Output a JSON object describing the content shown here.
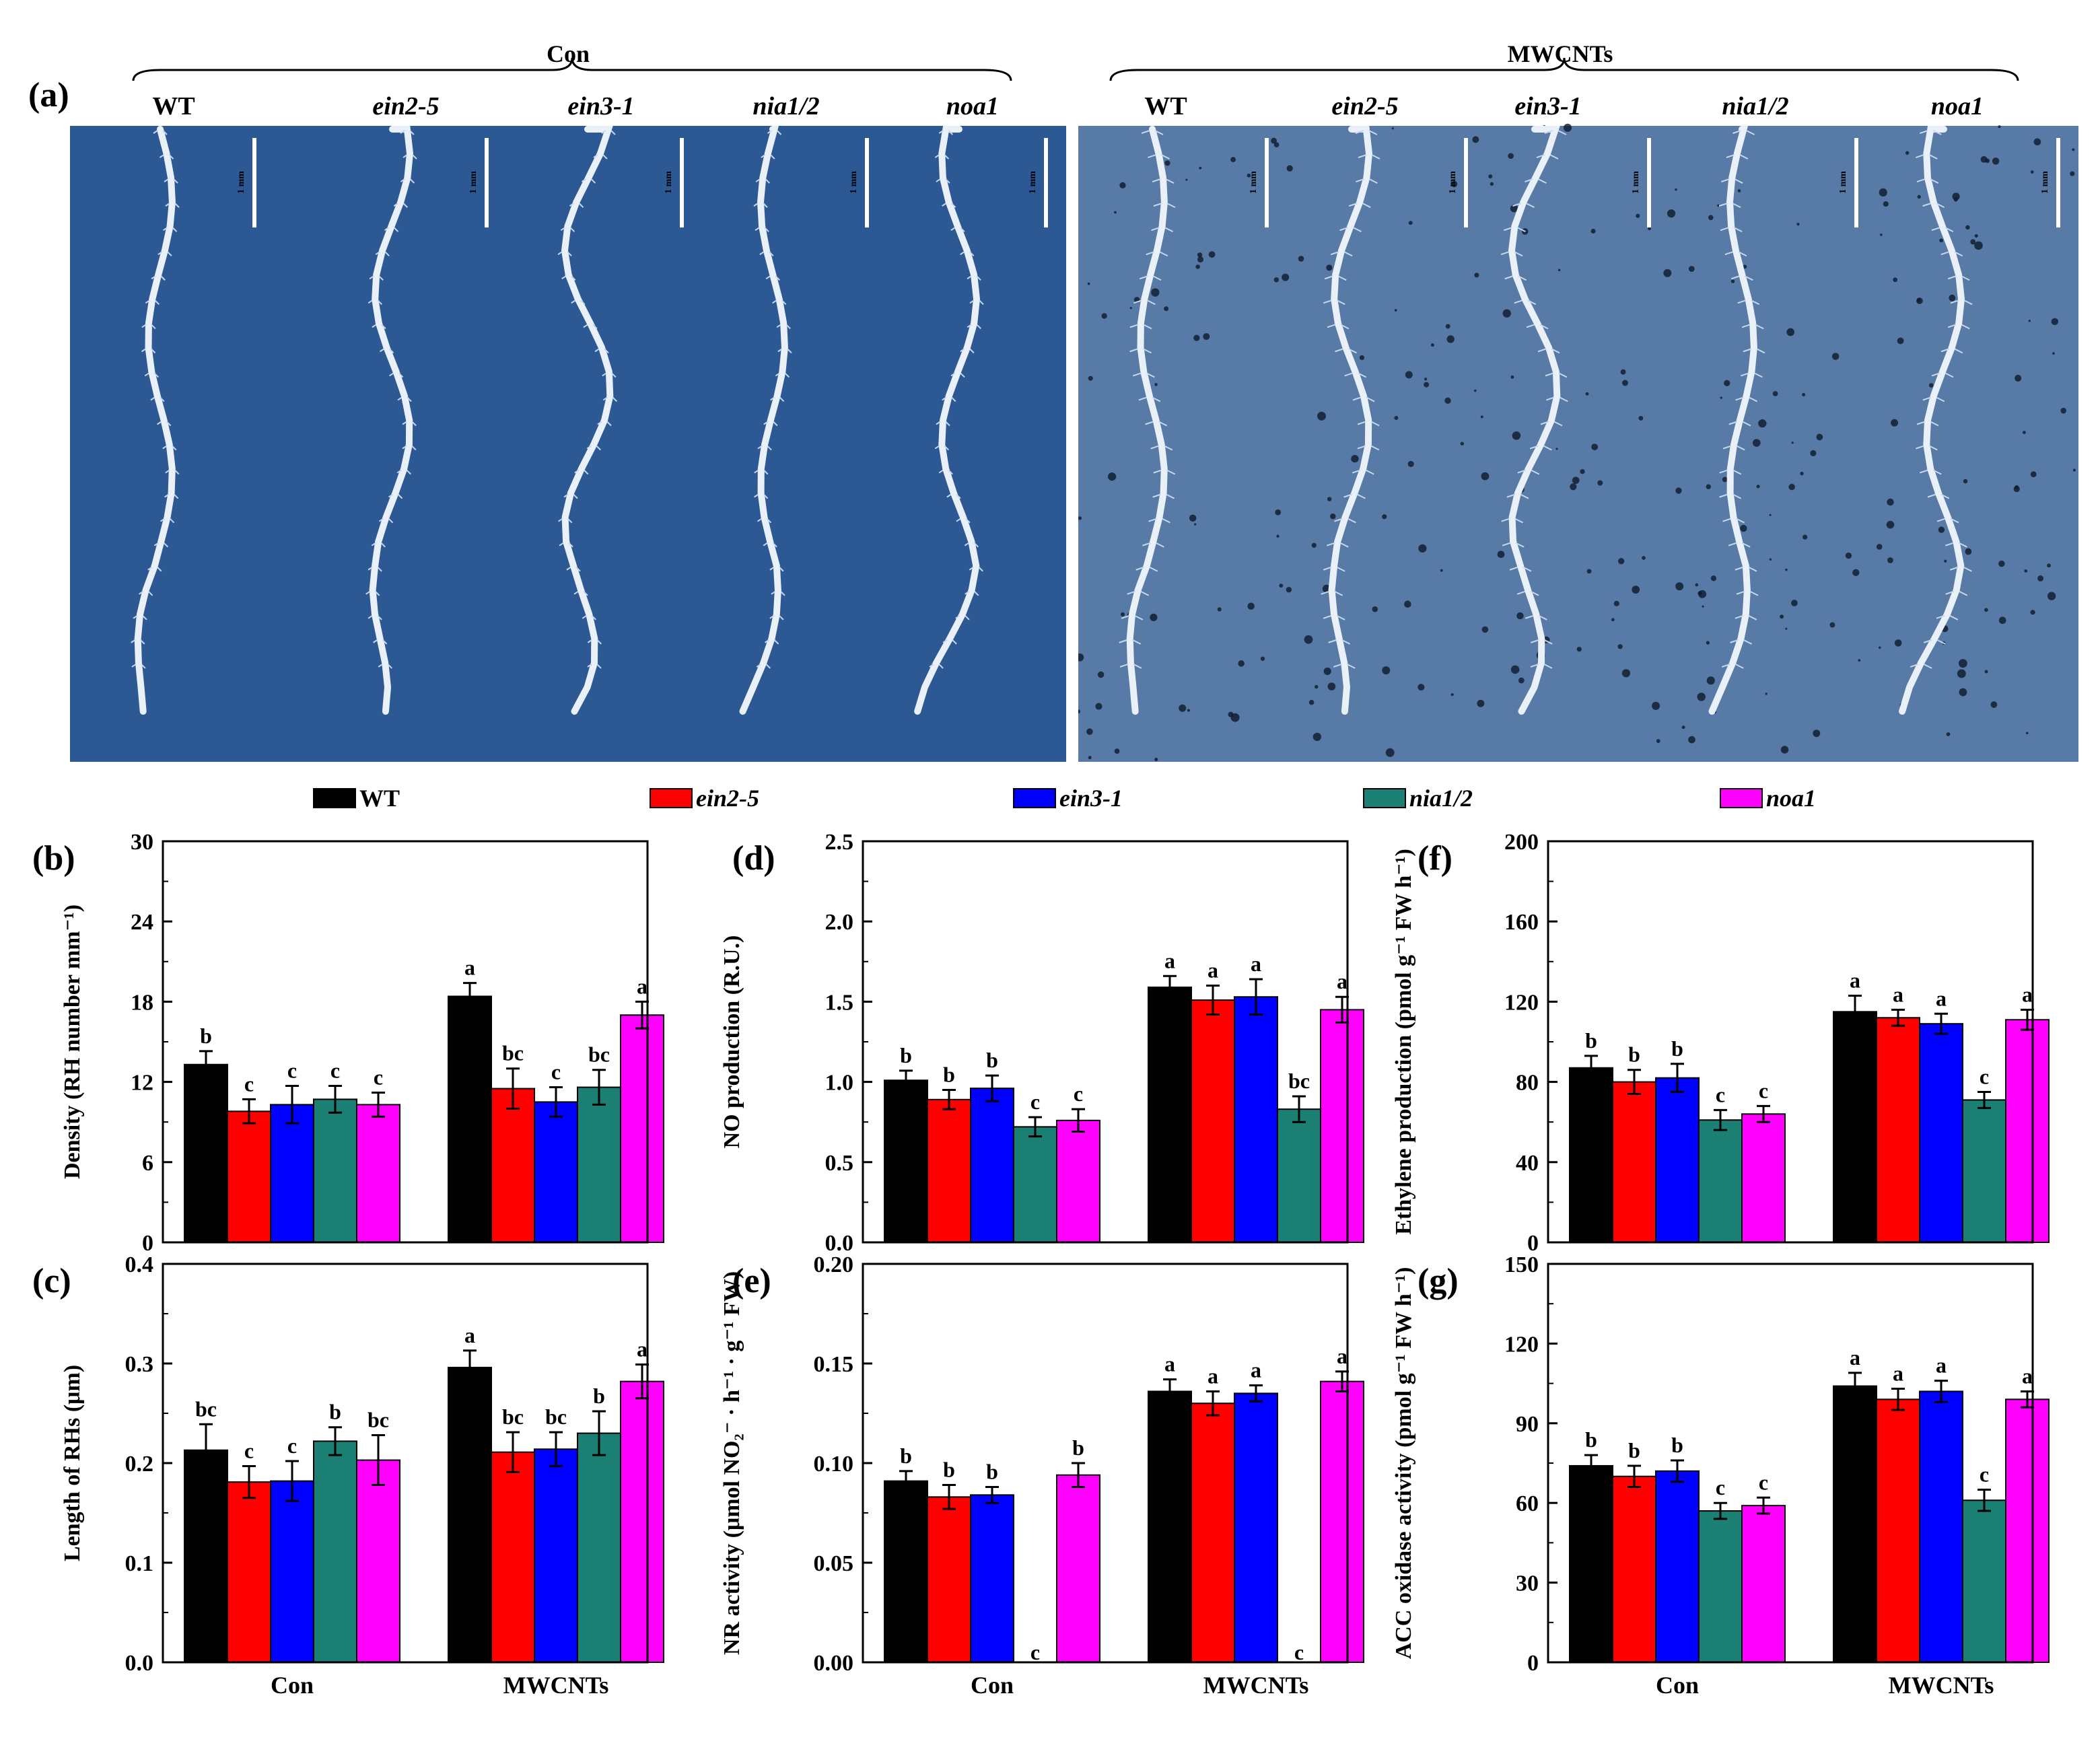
{
  "panel_a": {
    "label": "(a)",
    "groups": [
      {
        "name": "Con",
        "genotypes": [
          "WT",
          "ein2-5",
          "ein3-1",
          "nia1/2",
          "noa1"
        ],
        "scale_labels": [
          "1 mm",
          "1 mm",
          "1 mm",
          "1 mm",
          "1 mm"
        ]
      },
      {
        "name": "MWCNTs",
        "genotypes": [
          "WT",
          "ein2-5",
          "ein3-1",
          "nia1/2",
          "noa1"
        ],
        "scale_labels": [
          "1 mm",
          "1 mm",
          "1 mm",
          "1 mm",
          "1 mm"
        ]
      }
    ]
  },
  "legend": [
    {
      "name": "WT",
      "color": "#000000",
      "italic": false
    },
    {
      "name": "ein2-5",
      "color": "#ff0000",
      "italic": true
    },
    {
      "name": "ein3-1",
      "color": "#0000ff",
      "italic": true
    },
    {
      "name": "nia1/2",
      "color": "#1c7f73",
      "italic": true
    },
    {
      "name": "noa1",
      "color": "#ff00ff",
      "italic": true
    }
  ],
  "chart_data": [
    {
      "type": "bar",
      "panel": "(b)",
      "categories": [
        "Con",
        "MWCNTs"
      ],
      "show_xticklabels": false,
      "ylabel": "Density (RH number mm⁻¹)",
      "ylim": [
        0,
        30
      ],
      "yticks": [
        0,
        6,
        12,
        18,
        24,
        30
      ],
      "ytick_labels": [
        "0",
        "6",
        "12",
        "18",
        "24",
        "30"
      ],
      "series": [
        {
          "name": "WT",
          "values": [
            13.3,
            18.4
          ],
          "errors": [
            1.0,
            1.0
          ],
          "letters": [
            "b",
            "a"
          ]
        },
        {
          "name": "ein2-5",
          "values": [
            9.8,
            11.5
          ],
          "errors": [
            0.9,
            1.5
          ],
          "letters": [
            "c",
            "bc"
          ]
        },
        {
          "name": "ein3-1",
          "values": [
            10.3,
            10.5
          ],
          "errors": [
            1.4,
            1.1
          ],
          "letters": [
            "c",
            "c"
          ]
        },
        {
          "name": "nia1/2",
          "values": [
            10.7,
            11.6
          ],
          "errors": [
            1.0,
            1.3
          ],
          "letters": [
            "c",
            "bc"
          ]
        },
        {
          "name": "noa1",
          "values": [
            10.3,
            17.0
          ],
          "errors": [
            0.9,
            1.0
          ],
          "letters": [
            "c",
            "a"
          ]
        }
      ]
    },
    {
      "type": "bar",
      "panel": "(c)",
      "categories": [
        "Con",
        "MWCNTs"
      ],
      "show_xticklabels": true,
      "ylabel": "Length of RHs (μm)",
      "ylim": [
        0,
        0.4
      ],
      "yticks": [
        0,
        0.1,
        0.2,
        0.3,
        0.4
      ],
      "ytick_labels": [
        "0.0",
        "0.1",
        "0.2",
        "0.3",
        "0.4"
      ],
      "series": [
        {
          "name": "WT",
          "values": [
            0.213,
            0.296
          ],
          "errors": [
            0.026,
            0.017
          ],
          "letters": [
            "bc",
            "a"
          ]
        },
        {
          "name": "ein2-5",
          "values": [
            0.181,
            0.211
          ],
          "errors": [
            0.016,
            0.02
          ],
          "letters": [
            "c",
            "bc"
          ]
        },
        {
          "name": "ein3-1",
          "values": [
            0.182,
            0.214
          ],
          "errors": [
            0.02,
            0.017
          ],
          "letters": [
            "c",
            "bc"
          ]
        },
        {
          "name": "nia1/2",
          "values": [
            0.222,
            0.23
          ],
          "errors": [
            0.014,
            0.022
          ],
          "letters": [
            "b",
            "b"
          ]
        },
        {
          "name": "noa1",
          "values": [
            0.203,
            0.282
          ],
          "errors": [
            0.025,
            0.017
          ],
          "letters": [
            "bc",
            "a"
          ]
        }
      ]
    },
    {
      "type": "bar",
      "panel": "(d)",
      "categories": [
        "Con",
        "MWCNTs"
      ],
      "show_xticklabels": false,
      "ylabel": "NO production (R.U.)",
      "ylim": [
        0,
        2.5
      ],
      "yticks": [
        0,
        0.5,
        1.0,
        1.5,
        2.0,
        2.5
      ],
      "ytick_labels": [
        "0.0",
        "0.5",
        "1.0",
        "1.5",
        "2.0",
        "2.5"
      ],
      "series": [
        {
          "name": "WT",
          "values": [
            1.01,
            1.59
          ],
          "errors": [
            0.06,
            0.07
          ],
          "letters": [
            "b",
            "a"
          ]
        },
        {
          "name": "ein2-5",
          "values": [
            0.89,
            1.51
          ],
          "errors": [
            0.06,
            0.09
          ],
          "letters": [
            "b",
            "a"
          ]
        },
        {
          "name": "ein3-1",
          "values": [
            0.96,
            1.53
          ],
          "errors": [
            0.08,
            0.11
          ],
          "letters": [
            "b",
            "a"
          ]
        },
        {
          "name": "nia1/2",
          "values": [
            0.72,
            0.83
          ],
          "errors": [
            0.06,
            0.08
          ],
          "letters": [
            "c",
            "bc"
          ]
        },
        {
          "name": "noa1",
          "values": [
            0.76,
            1.45
          ],
          "errors": [
            0.07,
            0.08
          ],
          "letters": [
            "c",
            "a"
          ]
        }
      ]
    },
    {
      "type": "bar",
      "panel": "(e)",
      "categories": [
        "Con",
        "MWCNTs"
      ],
      "show_xticklabels": true,
      "ylabel": "NR activity (μmol NO₂⁻ · h⁻¹ · g⁻¹ FW)",
      "ylim": [
        0,
        0.2
      ],
      "yticks": [
        0,
        0.05,
        0.1,
        0.15,
        0.2
      ],
      "ytick_labels": [
        "0.00",
        "0.05",
        "0.10",
        "0.15",
        "0.20"
      ],
      "series": [
        {
          "name": "WT",
          "values": [
            0.091,
            0.136
          ],
          "errors": [
            0.005,
            0.006
          ],
          "letters": [
            "b",
            "a"
          ]
        },
        {
          "name": "ein2-5",
          "values": [
            0.083,
            0.13
          ],
          "errors": [
            0.006,
            0.006
          ],
          "letters": [
            "b",
            "a"
          ]
        },
        {
          "name": "ein3-1",
          "values": [
            0.084,
            0.135
          ],
          "errors": [
            0.004,
            0.004
          ],
          "letters": [
            "b",
            "a"
          ]
        },
        {
          "name": "nia1/2",
          "values": [
            0.0,
            0.0
          ],
          "errors": [
            0,
            0
          ],
          "letters": [
            "c",
            "c"
          ]
        },
        {
          "name": "noa1",
          "values": [
            0.094,
            0.141
          ],
          "errors": [
            0.006,
            0.005
          ],
          "letters": [
            "b",
            "a"
          ]
        }
      ]
    },
    {
      "type": "bar",
      "panel": "(f)",
      "categories": [
        "Con",
        "MWCNTs"
      ],
      "show_xticklabels": false,
      "ylabel": "Ethylene production (pmol g⁻¹ FW h⁻¹)",
      "ylim": [
        0,
        200
      ],
      "yticks": [
        0,
        40,
        80,
        120,
        160,
        200
      ],
      "ytick_labels": [
        "0",
        "40",
        "80",
        "120",
        "160",
        "200"
      ],
      "series": [
        {
          "name": "WT",
          "values": [
            87,
            115
          ],
          "errors": [
            6,
            8
          ],
          "letters": [
            "b",
            "a"
          ]
        },
        {
          "name": "ein2-5",
          "values": [
            80,
            112
          ],
          "errors": [
            6,
            4
          ],
          "letters": [
            "b",
            "a"
          ]
        },
        {
          "name": "ein3-1",
          "values": [
            82,
            109
          ],
          "errors": [
            7,
            5
          ],
          "letters": [
            "b",
            "a"
          ]
        },
        {
          "name": "nia1/2",
          "values": [
            61,
            71
          ],
          "errors": [
            5,
            4
          ],
          "letters": [
            "c",
            "c"
          ]
        },
        {
          "name": "noa1",
          "values": [
            64,
            111
          ],
          "errors": [
            4,
            5
          ],
          "letters": [
            "c",
            "a"
          ]
        }
      ]
    },
    {
      "type": "bar",
      "panel": "(g)",
      "categories": [
        "Con",
        "MWCNTs"
      ],
      "show_xticklabels": true,
      "ylabel": "ACC oxidase activity (pmol g⁻¹ FW h⁻¹)",
      "ylim": [
        0,
        150
      ],
      "yticks": [
        0,
        30,
        60,
        90,
        120,
        150
      ],
      "ytick_labels": [
        "0",
        "30",
        "60",
        "90",
        "120",
        "150"
      ],
      "series": [
        {
          "name": "WT",
          "values": [
            74,
            104
          ],
          "errors": [
            4,
            5
          ],
          "letters": [
            "b",
            "a"
          ]
        },
        {
          "name": "ein2-5",
          "values": [
            70,
            99
          ],
          "errors": [
            4,
            4
          ],
          "letters": [
            "b",
            "a"
          ]
        },
        {
          "name": "ein3-1",
          "values": [
            72,
            102
          ],
          "errors": [
            4,
            4
          ],
          "letters": [
            "b",
            "a"
          ]
        },
        {
          "name": "nia1/2",
          "values": [
            57,
            61
          ],
          "errors": [
            3,
            4
          ],
          "letters": [
            "c",
            "c"
          ]
        },
        {
          "name": "noa1",
          "values": [
            59,
            99
          ],
          "errors": [
            3,
            3
          ],
          "letters": [
            "c",
            "a"
          ]
        }
      ]
    }
  ]
}
